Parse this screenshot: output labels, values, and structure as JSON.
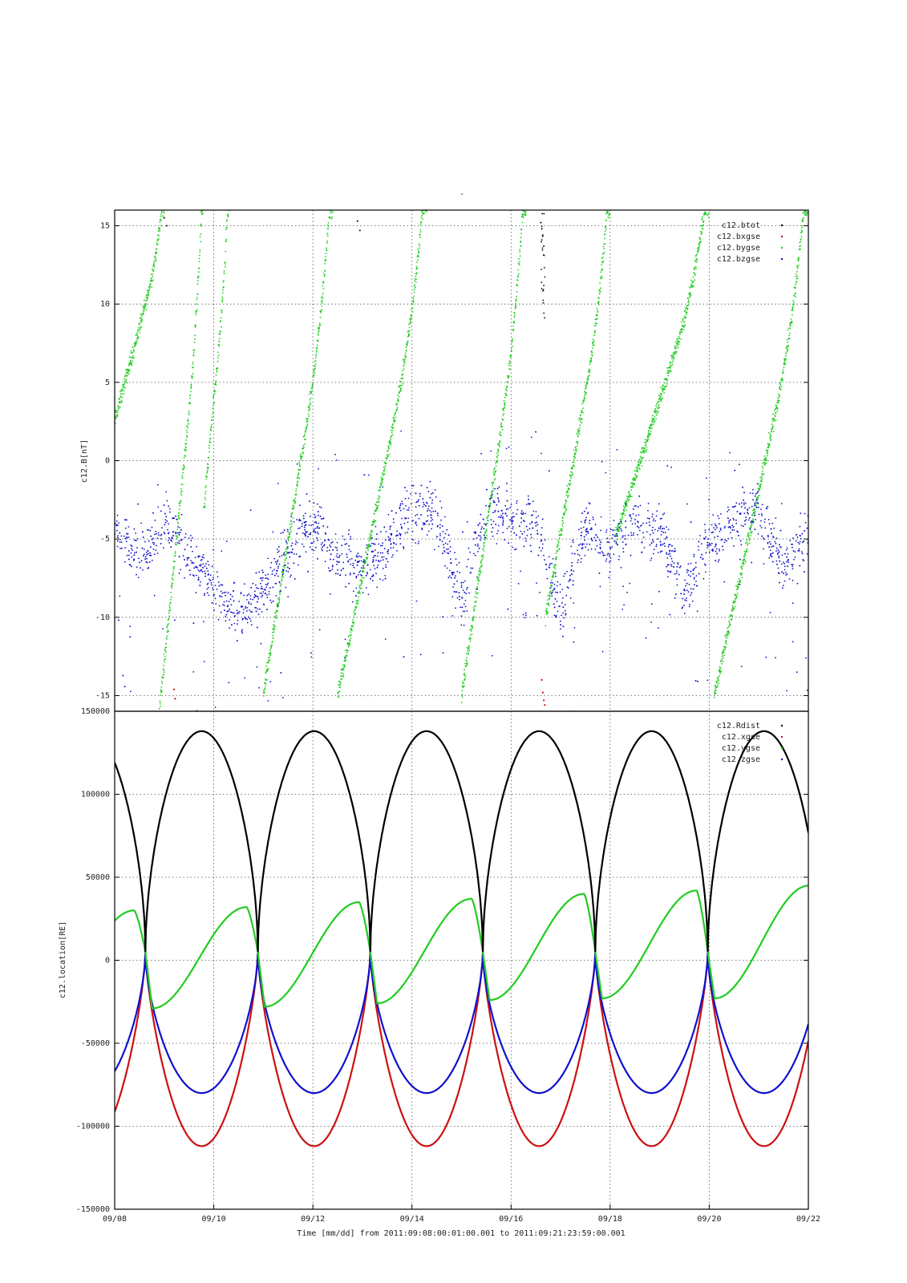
{
  "chart_data": [
    {
      "type": "scatter",
      "title": "-",
      "ylabel": "c12.B[nT]",
      "ylim": [
        -16,
        16
      ],
      "yticks": [
        -15,
        -10,
        -5,
        0,
        5,
        10,
        15
      ],
      "xlim": [
        "09/08",
        "09/22"
      ],
      "grid": true,
      "legend_position": "top-right",
      "series": [
        {
          "name": "c12.btot",
          "color": "#000000",
          "shape": "sparse outliers near +15 on 09/09, 09/13 and 09/16"
        },
        {
          "name": "c12.bxgse",
          "color": "#cc0000",
          "shape": "few points near -15 on 09/09 and 09/16"
        },
        {
          "name": "c12.bygse",
          "color": "#22cc22",
          "shape": "sawtooth ramps from about -16 up to +16",
          "segments": [
            {
              "t": [
                0.0,
                1.0
              ],
              "v": [
                2.5,
                16
              ]
            },
            {
              "t": [
                0.9,
                1.8
              ],
              "v": [
                -16,
                16
              ]
            },
            {
              "t": [
                1.8,
                2.3
              ],
              "v": [
                -3,
                16
              ]
            },
            {
              "t": [
                3.0,
                4.4
              ],
              "v": [
                -15,
                16
              ]
            },
            {
              "t": [
                4.5,
                6.3
              ],
              "v": [
                -15,
                16
              ]
            },
            {
              "t": [
                7.0,
                8.3
              ],
              "v": [
                -15,
                16
              ]
            },
            {
              "t": [
                8.7,
                10.0
              ],
              "v": [
                -10,
                16
              ]
            },
            {
              "t": [
                10.1,
                12.0
              ],
              "v": [
                -5,
                16
              ]
            },
            {
              "t": [
                12.1,
                14.0
              ],
              "v": [
                -15,
                16
              ]
            }
          ]
        },
        {
          "name": "c12.bzgse",
          "color": "#1010cc",
          "shape": "noisy values mostly between -9 and -2",
          "profile": {
            "t": [
              0.0,
              0.5,
              1.0,
              1.5,
              2.0,
              2.5,
              3.0,
              3.5,
              4.0,
              4.5,
              5.0,
              5.5,
              6.0,
              6.5,
              7.0,
              7.5,
              8.0,
              8.5,
              9.0,
              9.5,
              10.0,
              10.5,
              11.0,
              11.5,
              12.0,
              12.5,
              13.0,
              13.5,
              14.0
            ],
            "v": [
              -4,
              -6.5,
              -4,
              -6,
              -8,
              -10,
              -8,
              -6,
              -4,
              -6,
              -7,
              -5.5,
              -3,
              -3.5,
              -9,
              -3,
              -4,
              -3.5,
              -10,
              -4,
              -5.5,
              -4,
              -4.5,
              -8.5,
              -5,
              -4,
              -3,
              -7,
              -5
            ]
          },
          "spread": 2.5
        }
      ]
    },
    {
      "type": "line",
      "title": "",
      "ylabel": "c12.location[RE]",
      "xlabel": "Time [mm/dd]  from 2011:09:08:00:01:00.001  to  2011:09:21:23:59:00.001",
      "ylim": [
        -150000,
        150000
      ],
      "yticks": [
        -150000,
        -100000,
        -50000,
        0,
        50000,
        100000,
        150000
      ],
      "xlim": [
        "09/08",
        "09/22"
      ],
      "xticks": [
        "09/08",
        "09/10",
        "09/12",
        "09/14",
        "09/16",
        "09/18",
        "09/20",
        "09/22"
      ],
      "grid": true,
      "legend_position": "top-right",
      "orbit_period_days": 2.27,
      "perigee_days": [
        0.62,
        2.89,
        5.16,
        7.43,
        9.7,
        11.97
      ],
      "series": [
        {
          "name": "c12.Rdist",
          "color": "#000000",
          "perigee": 5000,
          "apogee": 138000,
          "start": 120000,
          "end": 65000
        },
        {
          "name": "c12.xgse",
          "color": "#cc1111",
          "perigee": 5000,
          "min": -112000,
          "start": -99000,
          "end": -45000
        },
        {
          "name": "c12.ygse",
          "color": "#22cc22",
          "perigee": 5000,
          "trough": [
            -31000,
            -29000,
            -28000,
            -26000,
            -24000,
            -23000
          ],
          "peak": [
            30000,
            32000,
            35000,
            37000,
            40000,
            42000,
            45000
          ],
          "start": 18000,
          "end": 40000
        },
        {
          "name": "c12.zgse",
          "color": "#1111cc",
          "perigee": 5000,
          "min": -80000,
          "start": -65000,
          "end": -27000
        }
      ]
    }
  ]
}
